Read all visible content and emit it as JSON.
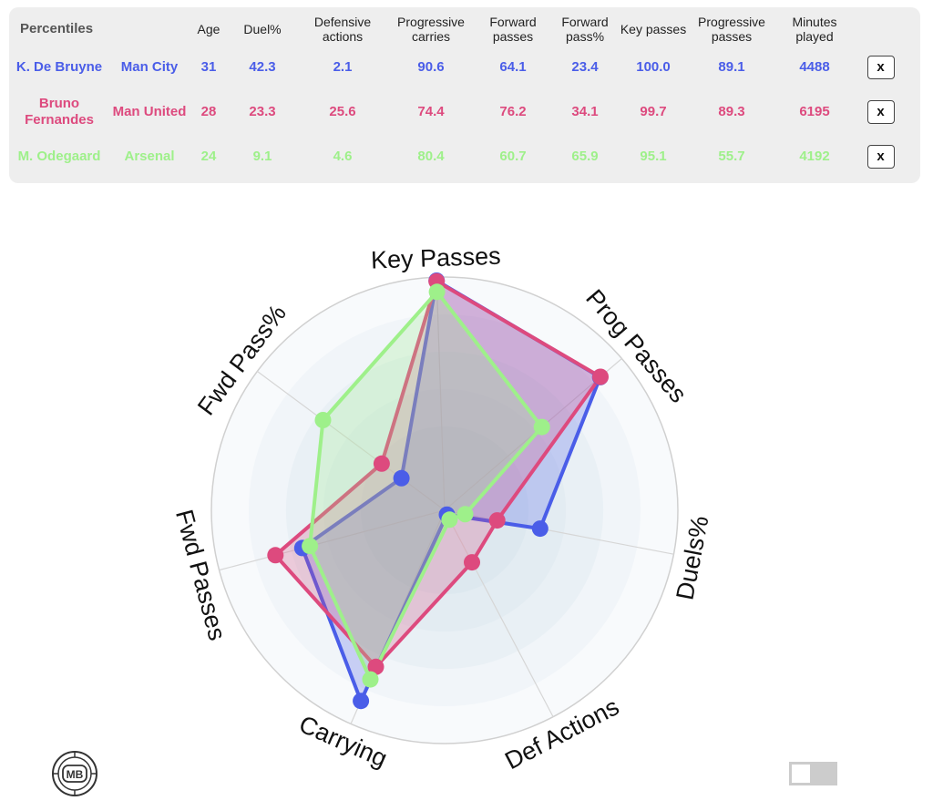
{
  "table": {
    "header_label": "Percentiles",
    "columns": [
      "Age",
      "Duel%",
      "Defensive actions",
      "Progressive carries",
      "Forward passes",
      "Forward pass%",
      "Key passes",
      "Progressive passes",
      "Minutes played"
    ],
    "remove_label": "x",
    "rows": [
      {
        "player": "K. De Bruyne",
        "team": "Man City",
        "color": "#4a5de8",
        "values": [
          "31",
          "42.3",
          "2.1",
          "90.6",
          "64.1",
          "23.4",
          "100.0",
          "89.1",
          "4488"
        ]
      },
      {
        "player": "Bruno Fernandes",
        "team": "Man United",
        "color": "#dd4a7e",
        "values": [
          "28",
          "23.3",
          "25.6",
          "74.4",
          "76.2",
          "34.1",
          "99.7",
          "89.3",
          "6195"
        ]
      },
      {
        "player": "M. Odegaard",
        "team": "Arsenal",
        "color": "#9ef08a",
        "values": [
          "24",
          "9.1",
          "4.6",
          "80.4",
          "60.7",
          "65.9",
          "95.1",
          "55.7",
          "4192"
        ]
      }
    ]
  },
  "logo_text": "MB",
  "chart_data": {
    "type": "radar",
    "axes": [
      "Key Passes",
      "Prog Passes",
      "Duels%",
      "Def Actions",
      "Carrying",
      "Fwd Passes",
      "Fwd Pass%"
    ],
    "range": [
      0,
      100
    ],
    "grid": true,
    "series": [
      {
        "name": "K. De Bruyne",
        "color": "#4a5de8",
        "values": [
          100.0,
          89.1,
          42.3,
          2.1,
          90.6,
          64.1,
          23.4
        ]
      },
      {
        "name": "Bruno Fernandes",
        "color": "#dd4a7e",
        "values": [
          99.7,
          89.3,
          23.3,
          25.6,
          74.4,
          76.2,
          34.1
        ]
      },
      {
        "name": "M. Odegaard",
        "color": "#9ef08a",
        "values": [
          95.1,
          55.7,
          9.1,
          4.6,
          80.4,
          60.7,
          65.9
        ]
      }
    ]
  }
}
